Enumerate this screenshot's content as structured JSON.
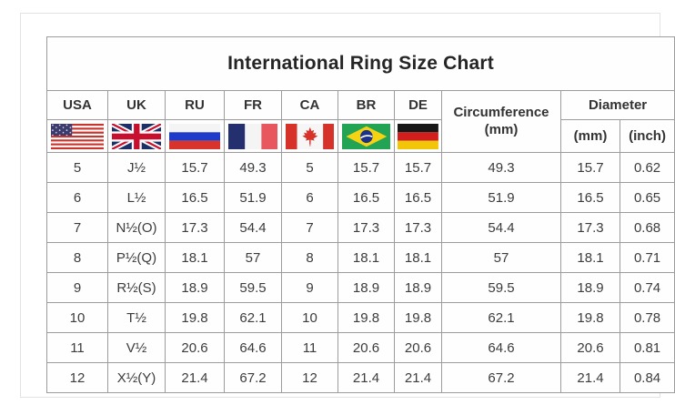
{
  "title": "International Ring Size Chart",
  "chart_data": {
    "type": "table",
    "title": "International Ring Size Chart",
    "country_columns": [
      {
        "label": "USA",
        "icon": "usa-flag-icon"
      },
      {
        "label": "UK",
        "icon": "uk-flag-icon"
      },
      {
        "label": "RU",
        "icon": "russia-flag-icon"
      },
      {
        "label": "FR",
        "icon": "france-flag-icon"
      },
      {
        "label": "CA",
        "icon": "canada-flag-icon"
      },
      {
        "label": "BR",
        "icon": "brazil-flag-icon"
      },
      {
        "label": "DE",
        "icon": "germany-flag-icon"
      }
    ],
    "circumference_header": {
      "line1": "Circumference",
      "line2": "(mm)"
    },
    "diameter_header": {
      "label": "Diameter",
      "sub_mm": "(mm)",
      "sub_inch": "(inch)"
    },
    "column_order": [
      "USA",
      "UK",
      "RU",
      "FR",
      "CA",
      "BR",
      "DE",
      "Circumference (mm)",
      "Diameter (mm)",
      "Diameter (inch)"
    ],
    "rows": [
      [
        "5",
        "J½",
        "15.7",
        "49.3",
        "5",
        "15.7",
        "15.7",
        "49.3",
        "15.7",
        "0.62"
      ],
      [
        "6",
        "L½",
        "16.5",
        "51.9",
        "6",
        "16.5",
        "16.5",
        "51.9",
        "16.5",
        "0.65"
      ],
      [
        "7",
        "N½(O)",
        "17.3",
        "54.4",
        "7",
        "17.3",
        "17.3",
        "54.4",
        "17.3",
        "0.68"
      ],
      [
        "8",
        "P½(Q)",
        "18.1",
        "57",
        "8",
        "18.1",
        "18.1",
        "57",
        "18.1",
        "0.71"
      ],
      [
        "9",
        "R½(S)",
        "18.9",
        "59.5",
        "9",
        "18.9",
        "18.9",
        "59.5",
        "18.9",
        "0.74"
      ],
      [
        "10",
        "T½",
        "19.8",
        "62.1",
        "10",
        "19.8",
        "19.8",
        "62.1",
        "19.8",
        "0.78"
      ],
      [
        "11",
        "V½",
        "20.6",
        "64.6",
        "11",
        "20.6",
        "20.6",
        "64.6",
        "20.6",
        "0.81"
      ],
      [
        "12",
        "X½(Y)",
        "21.4",
        "67.2",
        "12",
        "21.4",
        "21.4",
        "67.2",
        "21.4",
        "0.84"
      ]
    ]
  },
  "colors": {
    "table_border": "#9c9c9c",
    "outer_frame_border": "#e3e3e3",
    "text": "#3c3c3c",
    "title_text": "#252525",
    "background": "#ffffff"
  }
}
